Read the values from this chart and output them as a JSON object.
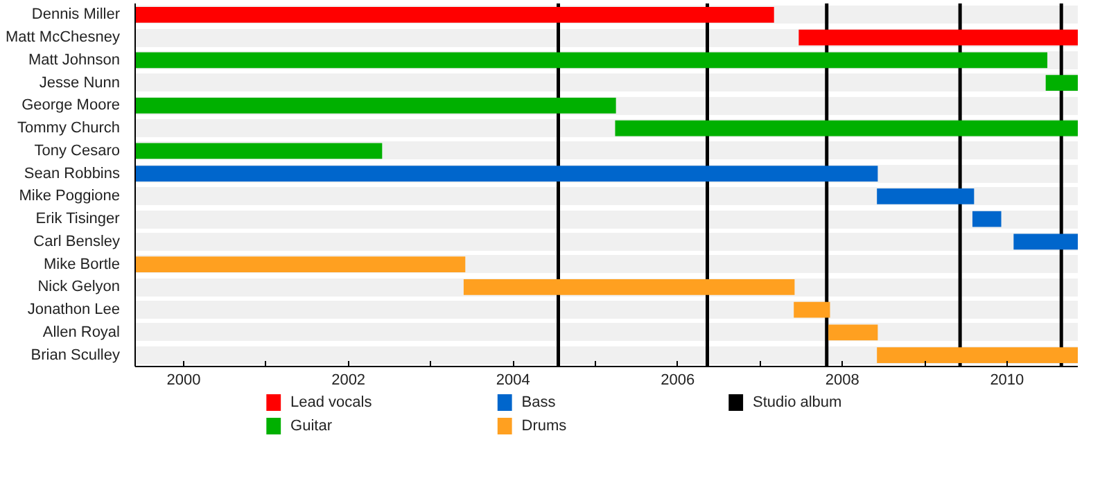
{
  "chart_data": {
    "type": "bar",
    "orientation": "horizontal",
    "categories": [
      "Dennis Miller",
      "Matt McChesney",
      "Matt Johnson",
      "Jesse Nunn",
      "George Moore",
      "Tommy Church",
      "Tony Cesaro",
      "Sean Robbins",
      "Mike Poggione",
      "Erik Tisinger",
      "Carl Bensley",
      "Mike Bortle",
      "Nick Gelyon",
      "Jonathon Lee",
      "Allen Royal",
      "Brian Sculley"
    ],
    "series": [
      {
        "name": "Lead vocals",
        "color": "#ff0000",
        "base": [
          1999.41,
          2007.47,
          null,
          null,
          null,
          null,
          null,
          null,
          null,
          null,
          null,
          null,
          null,
          null,
          null,
          null
        ],
        "values": [
          7.76,
          3.39,
          null,
          null,
          null,
          null,
          null,
          null,
          null,
          null,
          null,
          null,
          null,
          null,
          null,
          null
        ]
      },
      {
        "name": "Guitar",
        "color": "#00b000",
        "base": [
          null,
          null,
          1999.41,
          2010.47,
          1999.41,
          2005.24,
          1999.41,
          null,
          null,
          null,
          null,
          null,
          null,
          null,
          null,
          null
        ],
        "values": [
          null,
          null,
          11.08,
          0.39,
          5.84,
          5.62,
          3.0,
          null,
          null,
          null,
          null,
          null,
          null,
          null,
          null,
          null
        ]
      },
      {
        "name": "Bass",
        "color": "#0066cc",
        "base": [
          null,
          null,
          null,
          null,
          null,
          null,
          null,
          1999.41,
          2008.42,
          2009.58,
          2010.08,
          null,
          null,
          null,
          null,
          null
        ],
        "values": [
          null,
          null,
          null,
          null,
          null,
          null,
          null,
          9.02,
          1.18,
          0.35,
          0.78,
          null,
          null,
          null,
          null,
          null
        ]
      },
      {
        "name": "Drums",
        "color": "#ffa020",
        "base": [
          null,
          null,
          null,
          null,
          null,
          null,
          null,
          null,
          null,
          null,
          null,
          1999.41,
          2003.4,
          2007.41,
          2007.83,
          2008.42
        ],
        "values": [
          null,
          null,
          null,
          null,
          null,
          null,
          null,
          null,
          null,
          null,
          null,
          4.01,
          4.02,
          0.44,
          0.6,
          2.44
        ]
      }
    ],
    "ref_lines": [
      {
        "axis": "x",
        "value": 2004.55,
        "label": "Studio album",
        "color": "#000000"
      },
      {
        "axis": "x",
        "value": 2006.36,
        "color": "#000000"
      },
      {
        "axis": "x",
        "value": 2007.81,
        "color": "#000000"
      },
      {
        "axis": "x",
        "value": 2009.43,
        "color": "#000000"
      },
      {
        "axis": "x",
        "value": 2010.66,
        "color": "#000000"
      }
    ],
    "xlim": [
      1999.41,
      2010.86
    ],
    "xticks": [
      2000,
      {
        "value": 2001,
        "label": null
      },
      2002,
      {
        "value": 2003,
        "label": null
      },
      2004,
      {
        "value": 2005,
        "label": null
      },
      2006,
      {
        "value": 2007,
        "label": null
      },
      2008,
      {
        "value": 2009,
        "label": null
      },
      2010
    ],
    "grid": "y",
    "legend": "bottom"
  }
}
